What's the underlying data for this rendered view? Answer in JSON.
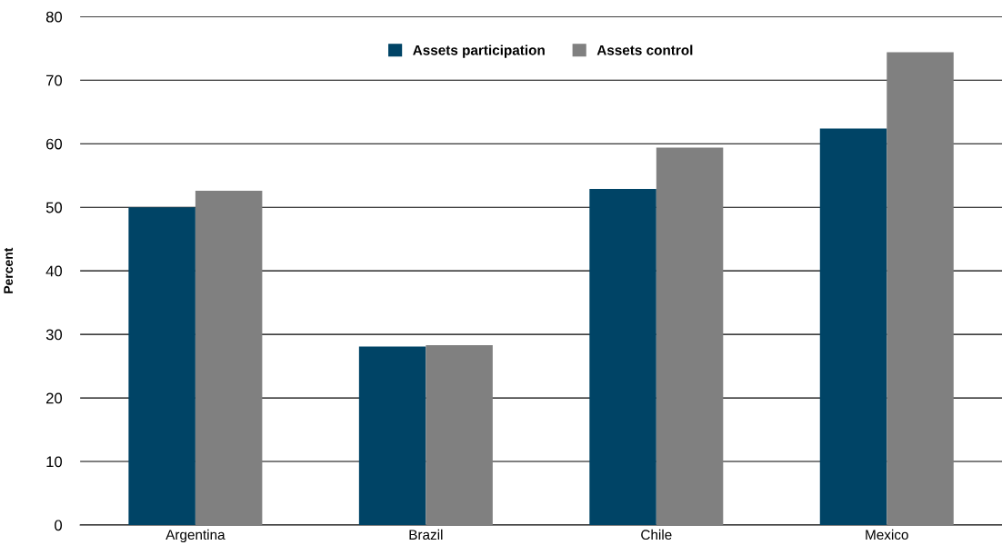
{
  "chart_data": {
    "type": "bar",
    "ylabel": "Percent",
    "categories": [
      "Argentina",
      "Brazil",
      "Chile",
      "Mexico"
    ],
    "series": [
      {
        "name": "Assets participation",
        "color": "#004466",
        "values": [
          50.0,
          28.1,
          52.9,
          62.4
        ]
      },
      {
        "name": "Assets control",
        "color": "#808080",
        "values": [
          52.6,
          28.3,
          59.4,
          74.4
        ]
      }
    ],
    "ylim": [
      0,
      80
    ],
    "yticks": [
      0,
      10,
      20,
      30,
      40,
      50,
      60,
      70,
      80
    ],
    "grid": "y",
    "legend": "top"
  }
}
